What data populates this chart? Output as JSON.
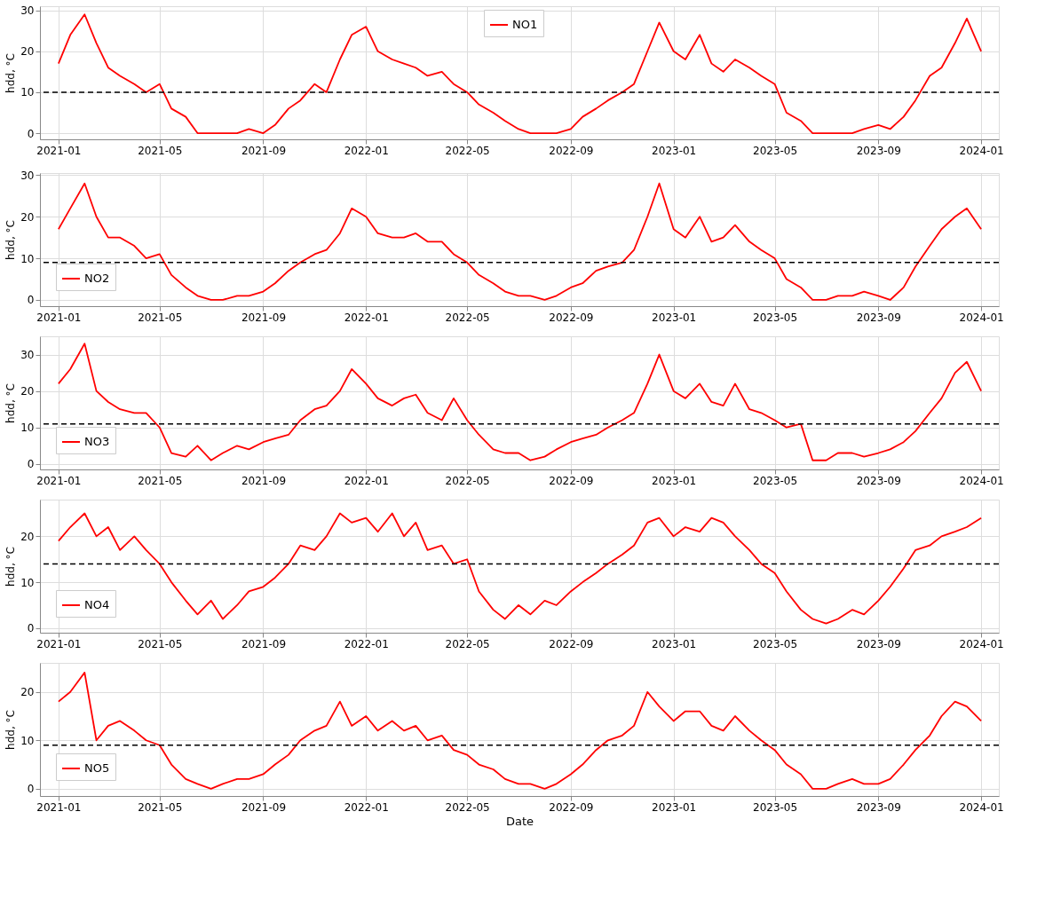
{
  "chart_data": [
    {
      "type": "line",
      "ylabel": "hdd, °C",
      "legend": "top",
      "grid": true,
      "xlim": [
        "2020-12-10",
        "2024-01-22"
      ],
      "xticks": [
        "2021-01",
        "2021-05",
        "2021-09",
        "2022-01",
        "2022-05",
        "2022-09",
        "2023-01",
        "2023-05",
        "2023-09",
        "2024-01"
      ],
      "ylim": [
        -1.5,
        31
      ],
      "yticks": [
        0,
        10,
        20,
        30
      ],
      "x": [
        "2021-01-01",
        "2021-01-15",
        "2021-02-01",
        "2021-02-15",
        "2021-03-01",
        "2021-03-15",
        "2021-04-01",
        "2021-04-15",
        "2021-05-01",
        "2021-05-15",
        "2021-06-01",
        "2021-06-15",
        "2021-07-01",
        "2021-07-15",
        "2021-08-01",
        "2021-08-15",
        "2021-09-01",
        "2021-09-15",
        "2021-10-01",
        "2021-10-15",
        "2021-11-01",
        "2021-11-15",
        "2021-12-01",
        "2021-12-15",
        "2022-01-01",
        "2022-01-15",
        "2022-02-01",
        "2022-02-15",
        "2022-03-01",
        "2022-03-15",
        "2022-04-01",
        "2022-04-15",
        "2022-05-01",
        "2022-05-15",
        "2022-06-01",
        "2022-06-15",
        "2022-07-01",
        "2022-07-15",
        "2022-08-01",
        "2022-08-15",
        "2022-09-01",
        "2022-09-15",
        "2022-10-01",
        "2022-10-15",
        "2022-11-01",
        "2022-11-15",
        "2022-12-01",
        "2022-12-15",
        "2023-01-01",
        "2023-01-15",
        "2023-02-01",
        "2023-02-15",
        "2023-03-01",
        "2023-03-15",
        "2023-04-01",
        "2023-04-15",
        "2023-05-01",
        "2023-05-15",
        "2023-06-01",
        "2023-06-15",
        "2023-07-01",
        "2023-07-15",
        "2023-08-01",
        "2023-08-15",
        "2023-09-01",
        "2023-09-15",
        "2023-10-01",
        "2023-10-15",
        "2023-11-01",
        "2023-11-15",
        "2023-12-01",
        "2023-12-15",
        "2024-01-01"
      ],
      "series": [
        {
          "name": "NO1",
          "color": "#ff0000",
          "values": [
            17,
            24,
            29,
            22,
            16,
            14,
            12,
            10,
            12,
            6,
            4,
            0,
            0,
            0,
            0,
            1,
            0,
            2,
            6,
            8,
            12,
            10,
            18,
            24,
            26,
            20,
            18,
            17,
            16,
            14,
            15,
            12,
            10,
            7,
            5,
            3,
            1,
            0,
            0,
            0,
            1,
            4,
            6,
            8,
            10,
            12,
            20,
            27,
            20,
            18,
            24,
            17,
            15,
            18,
            16,
            14,
            12,
            5,
            3,
            0,
            0,
            0,
            0,
            1,
            2,
            1,
            4,
            8,
            14,
            16,
            22,
            28,
            20
          ]
        }
      ],
      "ref_lines": [
        {
          "axis": "y",
          "value": 10,
          "color": "#000000",
          "line_style": "dashed"
        }
      ]
    },
    {
      "type": "line",
      "ylabel": "hdd, °C",
      "legend": "bottom left",
      "grid": true,
      "xlim": [
        "2020-12-10",
        "2024-01-22"
      ],
      "xticks": [
        "2021-01",
        "2021-05",
        "2021-09",
        "2022-01",
        "2022-05",
        "2022-09",
        "2023-01",
        "2023-05",
        "2023-09",
        "2024-01"
      ],
      "ylim": [
        -1.5,
        30.5
      ],
      "yticks": [
        0,
        10,
        20,
        30
      ],
      "x": [
        "2021-01-01",
        "2021-01-15",
        "2021-02-01",
        "2021-02-15",
        "2021-03-01",
        "2021-03-15",
        "2021-04-01",
        "2021-04-15",
        "2021-05-01",
        "2021-05-15",
        "2021-06-01",
        "2021-06-15",
        "2021-07-01",
        "2021-07-15",
        "2021-08-01",
        "2021-08-15",
        "2021-09-01",
        "2021-09-15",
        "2021-10-01",
        "2021-10-15",
        "2021-11-01",
        "2021-11-15",
        "2021-12-01",
        "2021-12-15",
        "2022-01-01",
        "2022-01-15",
        "2022-02-01",
        "2022-02-15",
        "2022-03-01",
        "2022-03-15",
        "2022-04-01",
        "2022-04-15",
        "2022-05-01",
        "2022-05-15",
        "2022-06-01",
        "2022-06-15",
        "2022-07-01",
        "2022-07-15",
        "2022-08-01",
        "2022-08-15",
        "2022-09-01",
        "2022-09-15",
        "2022-10-01",
        "2022-10-15",
        "2022-11-01",
        "2022-11-15",
        "2022-12-01",
        "2022-12-15",
        "2023-01-01",
        "2023-01-15",
        "2023-02-01",
        "2023-02-15",
        "2023-03-01",
        "2023-03-15",
        "2023-04-01",
        "2023-04-15",
        "2023-05-01",
        "2023-05-15",
        "2023-06-01",
        "2023-06-15",
        "2023-07-01",
        "2023-07-15",
        "2023-08-01",
        "2023-08-15",
        "2023-09-01",
        "2023-09-15",
        "2023-10-01",
        "2023-10-15",
        "2023-11-01",
        "2023-11-15",
        "2023-12-01",
        "2023-12-15",
        "2024-01-01"
      ],
      "series": [
        {
          "name": "NO2",
          "color": "#ff0000",
          "values": [
            17,
            22,
            28,
            20,
            15,
            15,
            13,
            10,
            11,
            6,
            3,
            1,
            0,
            0,
            1,
            1,
            2,
            4,
            7,
            9,
            11,
            12,
            16,
            22,
            20,
            16,
            15,
            15,
            16,
            14,
            14,
            11,
            9,
            6,
            4,
            2,
            1,
            1,
            0,
            1,
            3,
            4,
            7,
            8,
            9,
            12,
            20,
            28,
            17,
            15,
            20,
            14,
            15,
            18,
            14,
            12,
            10,
            5,
            3,
            0,
            0,
            1,
            1,
            2,
            1,
            0,
            3,
            8,
            13,
            17,
            20,
            22,
            17
          ]
        }
      ],
      "ref_lines": [
        {
          "axis": "y",
          "value": 9,
          "color": "#000000",
          "line_style": "dashed"
        }
      ]
    },
    {
      "type": "line",
      "ylabel": "hdd, °C",
      "legend": "bottom left",
      "grid": true,
      "xlim": [
        "2020-12-10",
        "2024-01-22"
      ],
      "xticks": [
        "2021-01",
        "2021-05",
        "2021-09",
        "2022-01",
        "2022-05",
        "2022-09",
        "2023-01",
        "2023-05",
        "2023-09",
        "2024-01"
      ],
      "ylim": [
        -1.5,
        35
      ],
      "yticks": [
        0,
        10,
        20,
        30
      ],
      "x": [
        "2021-01-01",
        "2021-01-15",
        "2021-02-01",
        "2021-02-15",
        "2021-03-01",
        "2021-03-15",
        "2021-04-01",
        "2021-04-15",
        "2021-05-01",
        "2021-05-15",
        "2021-06-01",
        "2021-06-15",
        "2021-07-01",
        "2021-07-15",
        "2021-08-01",
        "2021-08-15",
        "2021-09-01",
        "2021-09-15",
        "2021-10-01",
        "2021-10-15",
        "2021-11-01",
        "2021-11-15",
        "2021-12-01",
        "2021-12-15",
        "2022-01-01",
        "2022-01-15",
        "2022-02-01",
        "2022-02-15",
        "2022-03-01",
        "2022-03-15",
        "2022-04-01",
        "2022-04-15",
        "2022-05-01",
        "2022-05-15",
        "2022-06-01",
        "2022-06-15",
        "2022-07-01",
        "2022-07-15",
        "2022-08-01",
        "2022-08-15",
        "2022-09-01",
        "2022-09-15",
        "2022-10-01",
        "2022-10-15",
        "2022-11-01",
        "2022-11-15",
        "2022-12-01",
        "2022-12-15",
        "2023-01-01",
        "2023-01-15",
        "2023-02-01",
        "2023-02-15",
        "2023-03-01",
        "2023-03-15",
        "2023-04-01",
        "2023-04-15",
        "2023-05-01",
        "2023-05-15",
        "2023-06-01",
        "2023-06-15",
        "2023-07-01",
        "2023-07-15",
        "2023-08-01",
        "2023-08-15",
        "2023-09-01",
        "2023-09-15",
        "2023-10-01",
        "2023-10-15",
        "2023-11-01",
        "2023-11-15",
        "2023-12-01",
        "2023-12-15",
        "2024-01-01"
      ],
      "series": [
        {
          "name": "NO3",
          "color": "#ff0000",
          "values": [
            22,
            26,
            33,
            20,
            17,
            15,
            14,
            14,
            10,
            3,
            2,
            5,
            1,
            3,
            5,
            4,
            6,
            7,
            8,
            12,
            15,
            16,
            20,
            26,
            22,
            18,
            16,
            18,
            19,
            14,
            12,
            18,
            12,
            8,
            4,
            3,
            3,
            1,
            2,
            4,
            6,
            7,
            8,
            10,
            12,
            14,
            22,
            30,
            20,
            18,
            22,
            17,
            16,
            22,
            15,
            14,
            12,
            10,
            11,
            1,
            1,
            3,
            3,
            2,
            3,
            4,
            6,
            9,
            14,
            18,
            25,
            28,
            20
          ]
        }
      ],
      "ref_lines": [
        {
          "axis": "y",
          "value": 11,
          "color": "#000000",
          "line_style": "dashed"
        }
      ]
    },
    {
      "type": "line",
      "ylabel": "hdd, °C",
      "legend": "bottom left",
      "grid": true,
      "xlim": [
        "2020-12-10",
        "2024-01-22"
      ],
      "xticks": [
        "2021-01",
        "2021-05",
        "2021-09",
        "2022-01",
        "2022-05",
        "2022-09",
        "2023-01",
        "2023-05",
        "2023-09",
        "2024-01"
      ],
      "ylim": [
        -1,
        28
      ],
      "yticks": [
        0,
        10,
        20
      ],
      "x": [
        "2021-01-01",
        "2021-01-15",
        "2021-02-01",
        "2021-02-15",
        "2021-03-01",
        "2021-03-15",
        "2021-04-01",
        "2021-04-15",
        "2021-05-01",
        "2021-05-15",
        "2021-06-01",
        "2021-06-15",
        "2021-07-01",
        "2021-07-15",
        "2021-08-01",
        "2021-08-15",
        "2021-09-01",
        "2021-09-15",
        "2021-10-01",
        "2021-10-15",
        "2021-11-01",
        "2021-11-15",
        "2021-12-01",
        "2021-12-15",
        "2022-01-01",
        "2022-01-15",
        "2022-02-01",
        "2022-02-15",
        "2022-03-01",
        "2022-03-15",
        "2022-04-01",
        "2022-04-15",
        "2022-05-01",
        "2022-05-15",
        "2022-06-01",
        "2022-06-15",
        "2022-07-01",
        "2022-07-15",
        "2022-08-01",
        "2022-08-15",
        "2022-09-01",
        "2022-09-15",
        "2022-10-01",
        "2022-10-15",
        "2022-11-01",
        "2022-11-15",
        "2022-12-01",
        "2022-12-15",
        "2023-01-01",
        "2023-01-15",
        "2023-02-01",
        "2023-02-15",
        "2023-03-01",
        "2023-03-15",
        "2023-04-01",
        "2023-04-15",
        "2023-05-01",
        "2023-05-15",
        "2023-06-01",
        "2023-06-15",
        "2023-07-01",
        "2023-07-15",
        "2023-08-01",
        "2023-08-15",
        "2023-09-01",
        "2023-09-15",
        "2023-10-01",
        "2023-10-15",
        "2023-11-01",
        "2023-11-15",
        "2023-12-01",
        "2023-12-15",
        "2024-01-01"
      ],
      "series": [
        {
          "name": "NO4",
          "color": "#ff0000",
          "values": [
            19,
            22,
            25,
            20,
            22,
            17,
            20,
            17,
            14,
            10,
            6,
            3,
            6,
            2,
            5,
            8,
            9,
            11,
            14,
            18,
            17,
            20,
            25,
            23,
            24,
            21,
            25,
            20,
            23,
            17,
            18,
            14,
            15,
            8,
            4,
            2,
            5,
            3,
            6,
            5,
            8,
            10,
            12,
            14,
            16,
            18,
            23,
            24,
            20,
            22,
            21,
            24,
            23,
            20,
            17,
            14,
            12,
            8,
            4,
            2,
            1,
            2,
            4,
            3,
            6,
            9,
            13,
            17,
            18,
            20,
            21,
            22,
            24
          ]
        }
      ],
      "ref_lines": [
        {
          "axis": "y",
          "value": 14,
          "color": "#000000",
          "line_style": "dashed"
        }
      ]
    },
    {
      "type": "line",
      "ylabel": "hdd, °C",
      "xlabel": "Date",
      "legend": "bottom left",
      "grid": true,
      "xlim": [
        "2020-12-10",
        "2024-01-22"
      ],
      "xticks": [
        "2021-01",
        "2021-05",
        "2021-09",
        "2022-01",
        "2022-05",
        "2022-09",
        "2023-01",
        "2023-05",
        "2023-09",
        "2024-01"
      ],
      "ylim": [
        -1.5,
        26
      ],
      "yticks": [
        0,
        10,
        20
      ],
      "x": [
        "2021-01-01",
        "2021-01-15",
        "2021-02-01",
        "2021-02-15",
        "2021-03-01",
        "2021-03-15",
        "2021-04-01",
        "2021-04-15",
        "2021-05-01",
        "2021-05-15",
        "2021-06-01",
        "2021-06-15",
        "2021-07-01",
        "2021-07-15",
        "2021-08-01",
        "2021-08-15",
        "2021-09-01",
        "2021-09-15",
        "2021-10-01",
        "2021-10-15",
        "2021-11-01",
        "2021-11-15",
        "2021-12-01",
        "2021-12-15",
        "2022-01-01",
        "2022-01-15",
        "2022-02-01",
        "2022-02-15",
        "2022-03-01",
        "2022-03-15",
        "2022-04-01",
        "2022-04-15",
        "2022-05-01",
        "2022-05-15",
        "2022-06-01",
        "2022-06-15",
        "2022-07-01",
        "2022-07-15",
        "2022-08-01",
        "2022-08-15",
        "2022-09-01",
        "2022-09-15",
        "2022-10-01",
        "2022-10-15",
        "2022-11-01",
        "2022-11-15",
        "2022-12-01",
        "2022-12-15",
        "2023-01-01",
        "2023-01-15",
        "2023-02-01",
        "2023-02-15",
        "2023-03-01",
        "2023-03-15",
        "2023-04-01",
        "2023-04-15",
        "2023-05-01",
        "2023-05-15",
        "2023-06-01",
        "2023-06-15",
        "2023-07-01",
        "2023-07-15",
        "2023-08-01",
        "2023-08-15",
        "2023-09-01",
        "2023-09-15",
        "2023-10-01",
        "2023-10-15",
        "2023-11-01",
        "2023-11-15",
        "2023-12-01",
        "2023-12-15",
        "2024-01-01"
      ],
      "series": [
        {
          "name": "NO5",
          "color": "#ff0000",
          "values": [
            18,
            20,
            24,
            10,
            13,
            14,
            12,
            10,
            9,
            5,
            2,
            1,
            0,
            1,
            2,
            2,
            3,
            5,
            7,
            10,
            12,
            13,
            18,
            13,
            15,
            12,
            14,
            12,
            13,
            10,
            11,
            8,
            7,
            5,
            4,
            2,
            1,
            1,
            0,
            1,
            3,
            5,
            8,
            10,
            11,
            13,
            20,
            17,
            14,
            16,
            16,
            13,
            12,
            15,
            12,
            10,
            8,
            5,
            3,
            0,
            0,
            1,
            2,
            1,
            1,
            2,
            5,
            8,
            11,
            15,
            18,
            17,
            14
          ]
        }
      ],
      "ref_lines": [
        {
          "axis": "y",
          "value": 9,
          "color": "#000000",
          "line_style": "dashed"
        }
      ]
    }
  ]
}
